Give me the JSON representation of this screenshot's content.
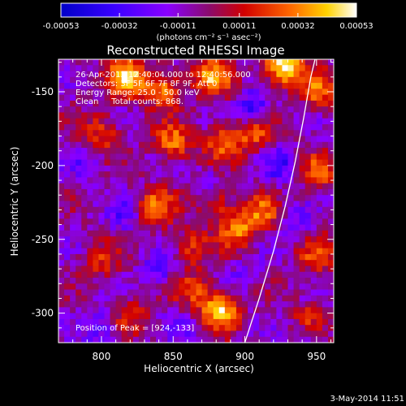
{
  "colorbar": {
    "ticks": [
      "-0.00053",
      "-0.00032",
      "-0.00011",
      "0.00011",
      "0.00032",
      "0.00053"
    ],
    "units_label": "(photons cm⁻² s⁻¹ asec⁻²)",
    "range": [
      -0.00053,
      0.00053
    ]
  },
  "chart_data": {
    "type": "heatmap",
    "title": "Reconstructed RHESSI Image",
    "xlabel": "Heliocentric X (arcsec)",
    "ylabel": "Heliocentric Y (arcsec)",
    "xlim": [
      770,
      962
    ],
    "ylim": [
      -320,
      -128
    ],
    "x_ticks": [
      800,
      850,
      900,
      950
    ],
    "y_ticks": [
      -150,
      -200,
      -250,
      -300
    ],
    "annotations": [
      "26-Apr-2012 12:40:04.000 to 12:40:56.000",
      "Detectors: 3F 5F 6F 7F 8F 9F, Att 0",
      "Energy Range: 25.0 - 50.0 keV",
      "Clean     Total counts: 868."
    ],
    "peak_label": "Position of Peak = [924,-133]",
    "limb_curve": [
      [
        900,
        -320
      ],
      [
        910,
        -290
      ],
      [
        920,
        -258
      ],
      [
        928,
        -228
      ],
      [
        935,
        -198
      ],
      [
        941,
        -168
      ],
      [
        946,
        -140
      ],
      [
        949,
        -128
      ]
    ],
    "hotspots": [
      [
        818,
        -140,
        0.85
      ],
      [
        843,
        -148,
        0.65
      ],
      [
        878,
        -140,
        0.7
      ],
      [
        927,
        -133,
        1.0
      ],
      [
        952,
        -150,
        0.55
      ],
      [
        800,
        -178,
        0.45
      ],
      [
        850,
        -185,
        0.6
      ],
      [
        885,
        -185,
        0.55
      ],
      [
        906,
        -178,
        0.5
      ],
      [
        952,
        -205,
        0.5
      ],
      [
        838,
        -228,
        0.55
      ],
      [
        879,
        -225,
        0.45
      ],
      [
        862,
        -255,
        0.4
      ],
      [
        895,
        -244,
        0.6
      ],
      [
        912,
        -232,
        0.5
      ],
      [
        865,
        -285,
        0.45
      ],
      [
        883,
        -298,
        0.85
      ],
      [
        800,
        -265,
        0.35
      ],
      [
        820,
        -302,
        0.35
      ],
      [
        950,
        -262,
        0.45
      ],
      [
        945,
        -305,
        0.35
      ]
    ],
    "coldspots": [
      [
        906,
        -162,
        0.7
      ],
      [
        875,
        -212,
        0.4
      ],
      [
        925,
        -200,
        0.5
      ],
      [
        840,
        -270,
        0.5
      ],
      [
        900,
        -275,
        0.3
      ],
      [
        935,
        -240,
        0.35
      ],
      [
        815,
        -235,
        0.35
      ],
      [
        945,
        -318,
        0.45
      ],
      [
        860,
        -312,
        0.35
      ],
      [
        790,
        -200,
        0.3
      ],
      [
        800,
        -310,
        0.45
      ]
    ]
  },
  "footer": {
    "date": "3-May-2014 11:51"
  }
}
